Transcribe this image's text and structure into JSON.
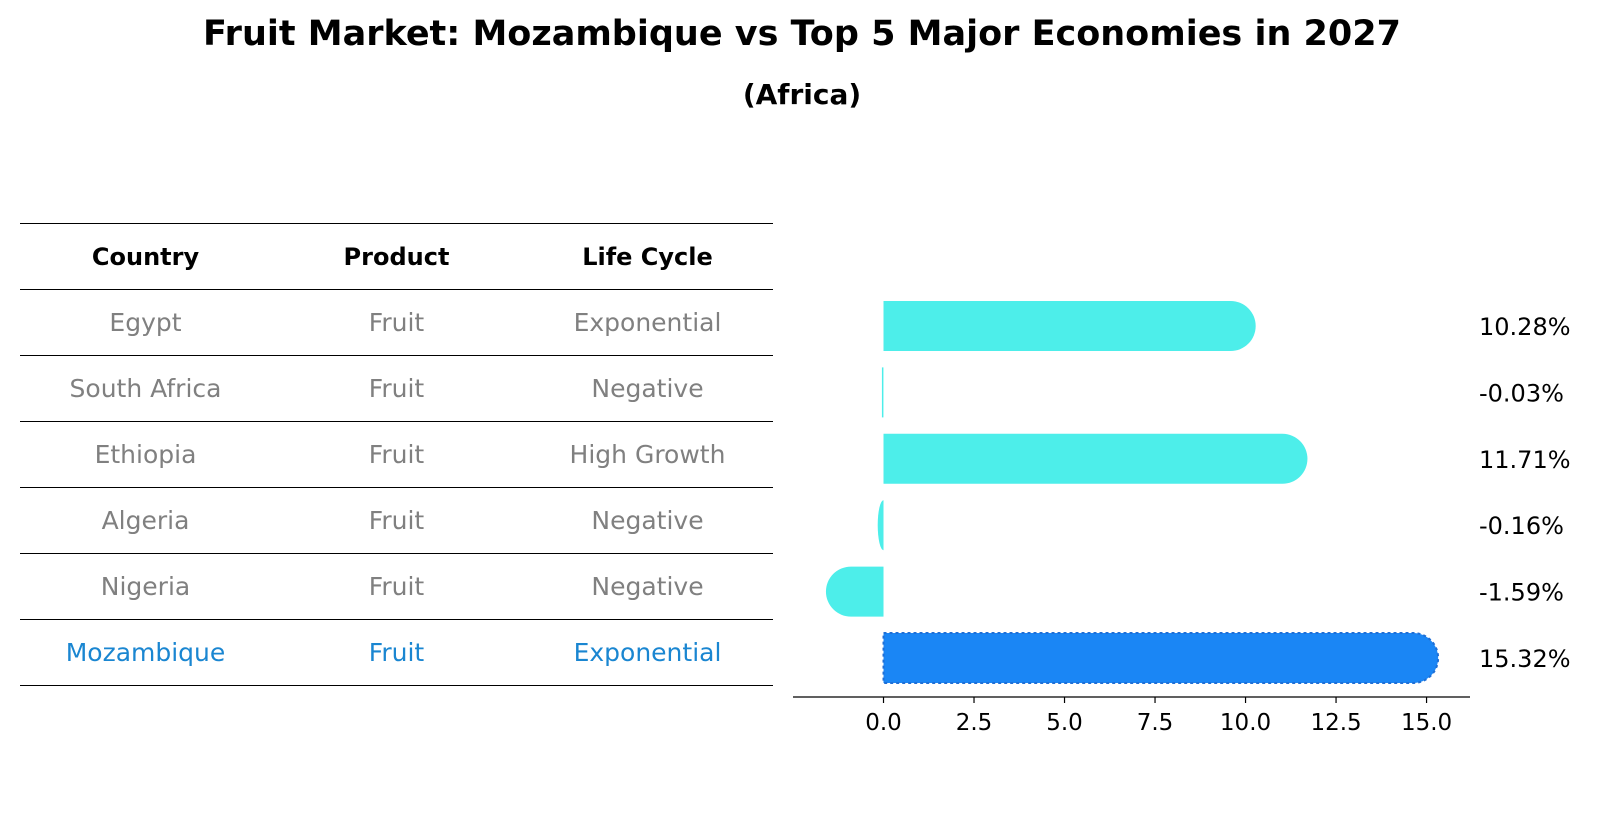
{
  "title": "Fruit Market: Mozambique vs Top 5 Major Economies in 2027",
  "subtitle": "(Africa)",
  "table": {
    "headers": [
      "Country",
      "Product",
      "Life Cycle"
    ],
    "rows": [
      [
        "Egypt",
        "Fruit",
        "Exponential"
      ],
      [
        "South Africa",
        "Fruit",
        "Negative"
      ],
      [
        "Ethiopia",
        "Fruit",
        "High Growth"
      ],
      [
        "Algeria",
        "Fruit",
        "Negative"
      ],
      [
        "Nigeria",
        "Fruit",
        "Negative"
      ],
      [
        "Mozambique",
        "Fruit",
        "Exponential"
      ]
    ]
  },
  "colors": {
    "bar": "#4deeea",
    "highlight": "#1a86f5",
    "highlight_text": "#1a86d1",
    "row_text": "#808080"
  },
  "chart_data": {
    "type": "bar",
    "orientation": "horizontal",
    "categories": [
      "Egypt",
      "South Africa",
      "Ethiopia",
      "Algeria",
      "Nigeria",
      "Mozambique"
    ],
    "values": [
      10.28,
      -0.03,
      11.71,
      -0.16,
      -1.59,
      15.32
    ],
    "value_labels": [
      "10.28%",
      "-0.03%",
      "11.71%",
      "-0.16%",
      "-1.59%",
      "15.32%"
    ],
    "highlight_index": 5,
    "xlim": [
      -2.5,
      16.2
    ],
    "xticks": [
      0.0,
      2.5,
      5.0,
      7.5,
      10.0,
      12.5,
      15.0
    ],
    "xtick_labels": [
      "0.0",
      "2.5",
      "5.0",
      "7.5",
      "10.0",
      "12.5",
      "15.0"
    ],
    "grid": false
  }
}
